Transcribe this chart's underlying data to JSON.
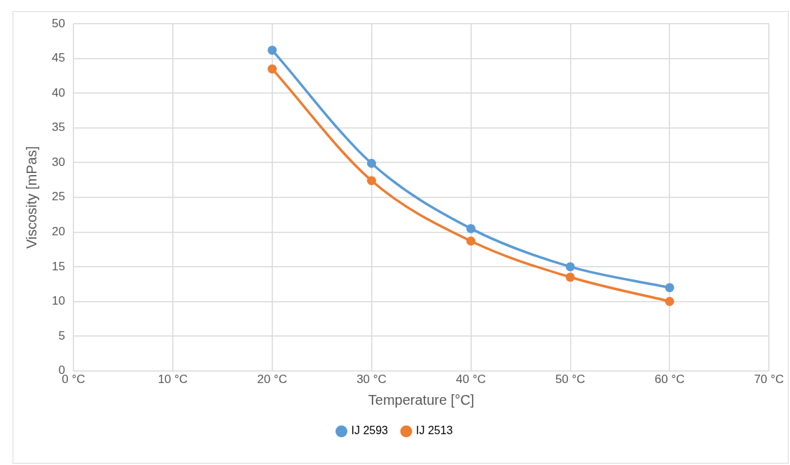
{
  "chart_data": {
    "type": "line",
    "xlabel": "Temperature [°C]",
    "ylabel": "Viscosity [mPas]",
    "x": [
      20,
      30,
      40,
      50,
      60
    ],
    "series": [
      {
        "name": "IJ 2593",
        "color": "#5b9bd5",
        "values": [
          46.2,
          29.9,
          20.5,
          15.0,
          12.0
        ]
      },
      {
        "name": "IJ 2513",
        "color": "#ed7d31",
        "values": [
          43.5,
          27.4,
          18.7,
          13.5,
          10.0
        ]
      }
    ],
    "xlim": [
      0,
      70
    ],
    "xticks": [
      {
        "value": 0,
        "label": "0 °C"
      },
      {
        "value": 10,
        "label": "10 °C"
      },
      {
        "value": 20,
        "label": "20 °C"
      },
      {
        "value": 30,
        "label": "30 °C"
      },
      {
        "value": 40,
        "label": "40 °C"
      },
      {
        "value": 50,
        "label": "50 °C"
      },
      {
        "value": 60,
        "label": "60 °C"
      },
      {
        "value": 70,
        "label": "70 °C"
      }
    ],
    "ylim": [
      0,
      50
    ],
    "yticks": [
      0,
      5,
      10,
      15,
      20,
      25,
      30,
      35,
      40,
      45,
      50
    ],
    "grid": true,
    "legend": "bottom",
    "marker": "circle",
    "line_style": "solid"
  }
}
